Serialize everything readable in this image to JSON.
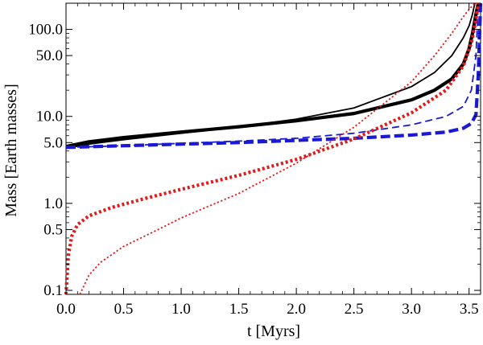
{
  "chart_data": {
    "type": "line",
    "title": "",
    "xlabel": "t [Myrs]",
    "ylabel": "Mass [Earth masses]",
    "xlim": [
      0.0,
      3.6
    ],
    "ylim": [
      0.09,
      200
    ],
    "yscale": "log",
    "grid": false,
    "x_ticks": [
      {
        "value": 0.0,
        "label": "0.0"
      },
      {
        "value": 0.5,
        "label": "0.5"
      },
      {
        "value": 1.0,
        "label": "1.0"
      },
      {
        "value": 1.5,
        "label": "1.5"
      },
      {
        "value": 2.0,
        "label": "2.0"
      },
      {
        "value": 2.5,
        "label": "2.5"
      },
      {
        "value": 3.0,
        "label": "3.0"
      },
      {
        "value": 3.5,
        "label": "3.5"
      }
    ],
    "y_ticks": [
      {
        "value": 0.1,
        "label": "0.1"
      },
      {
        "value": 0.5,
        "label": "0.5"
      },
      {
        "value": 1.0,
        "label": "1.0"
      },
      {
        "value": 5.0,
        "label": "5.0"
      },
      {
        "value": 10.0,
        "label": "10.0"
      },
      {
        "value": 50.0,
        "label": "50.0"
      },
      {
        "value": 100.0,
        "label": "100.0"
      }
    ],
    "series": [
      {
        "name": "black-thick-solid",
        "color": "#000000",
        "style": "solid",
        "weight": "thick",
        "x": [
          0.0,
          0.2,
          0.5,
          1.0,
          1.5,
          2.0,
          2.5,
          3.0,
          3.2,
          3.35,
          3.45,
          3.5,
          3.53,
          3.56,
          3.58
        ],
        "y": [
          4.5,
          5.1,
          5.7,
          6.6,
          7.6,
          8.9,
          10.8,
          15.5,
          20.0,
          27.0,
          40.0,
          60.0,
          90.0,
          150.0,
          200.0
        ]
      },
      {
        "name": "black-thin-solid",
        "color": "#000000",
        "style": "solid",
        "weight": "thin",
        "x": [
          0.0,
          0.2,
          0.5,
          1.0,
          1.5,
          2.0,
          2.5,
          3.0,
          3.2,
          3.35,
          3.45,
          3.5,
          3.53,
          3.55
        ],
        "y": [
          4.3,
          4.8,
          5.4,
          6.4,
          7.6,
          9.3,
          12.5,
          22.0,
          32.0,
          50.0,
          80.0,
          110.0,
          150.0,
          200.0
        ]
      },
      {
        "name": "blue-thick-dashed",
        "color": "#1a1ad6",
        "style": "dashed",
        "weight": "thick",
        "x": [
          0.0,
          0.5,
          1.0,
          1.5,
          2.0,
          2.5,
          3.0,
          3.3,
          3.45,
          3.52,
          3.56,
          3.58,
          3.6
        ],
        "y": [
          4.4,
          4.6,
          4.8,
          5.0,
          5.3,
          5.6,
          6.1,
          6.6,
          7.3,
          8.3,
          10.5,
          30.0,
          200.0
        ]
      },
      {
        "name": "blue-thin-dashed",
        "color": "#1a1ad6",
        "style": "dashed",
        "weight": "thin",
        "x": [
          0.0,
          0.5,
          1.0,
          1.5,
          2.0,
          2.5,
          3.0,
          3.3,
          3.45,
          3.52,
          3.56,
          3.58
        ],
        "y": [
          4.4,
          4.6,
          4.9,
          5.2,
          5.6,
          6.4,
          8.0,
          10.0,
          13.0,
          20.0,
          50.0,
          200.0
        ]
      },
      {
        "name": "red-thick-dotted",
        "color": "#e41a1a",
        "style": "dotted",
        "weight": "thick",
        "x": [
          0.0,
          0.02,
          0.05,
          0.1,
          0.2,
          0.4,
          0.7,
          1.0,
          1.5,
          2.0,
          2.5,
          3.0,
          3.3,
          3.45,
          3.52,
          3.56,
          3.58
        ],
        "y": [
          0.09,
          0.25,
          0.42,
          0.57,
          0.72,
          0.9,
          1.15,
          1.45,
          2.1,
          3.2,
          5.5,
          11.0,
          20.0,
          38.0,
          70.0,
          130.0,
          200.0
        ]
      },
      {
        "name": "red-thin-dotted",
        "color": "#e41a1a",
        "style": "dotted",
        "weight": "thin",
        "x": [
          0.12,
          0.2,
          0.3,
          0.5,
          0.8,
          1.0,
          1.5,
          2.0,
          2.5,
          3.0,
          3.2,
          3.35,
          3.45,
          3.5,
          3.55
        ],
        "y": [
          0.09,
          0.15,
          0.21,
          0.32,
          0.5,
          0.68,
          1.3,
          2.9,
          7.5,
          25.0,
          50.0,
          90.0,
          140.0,
          170.0,
          200.0
        ]
      }
    ]
  }
}
